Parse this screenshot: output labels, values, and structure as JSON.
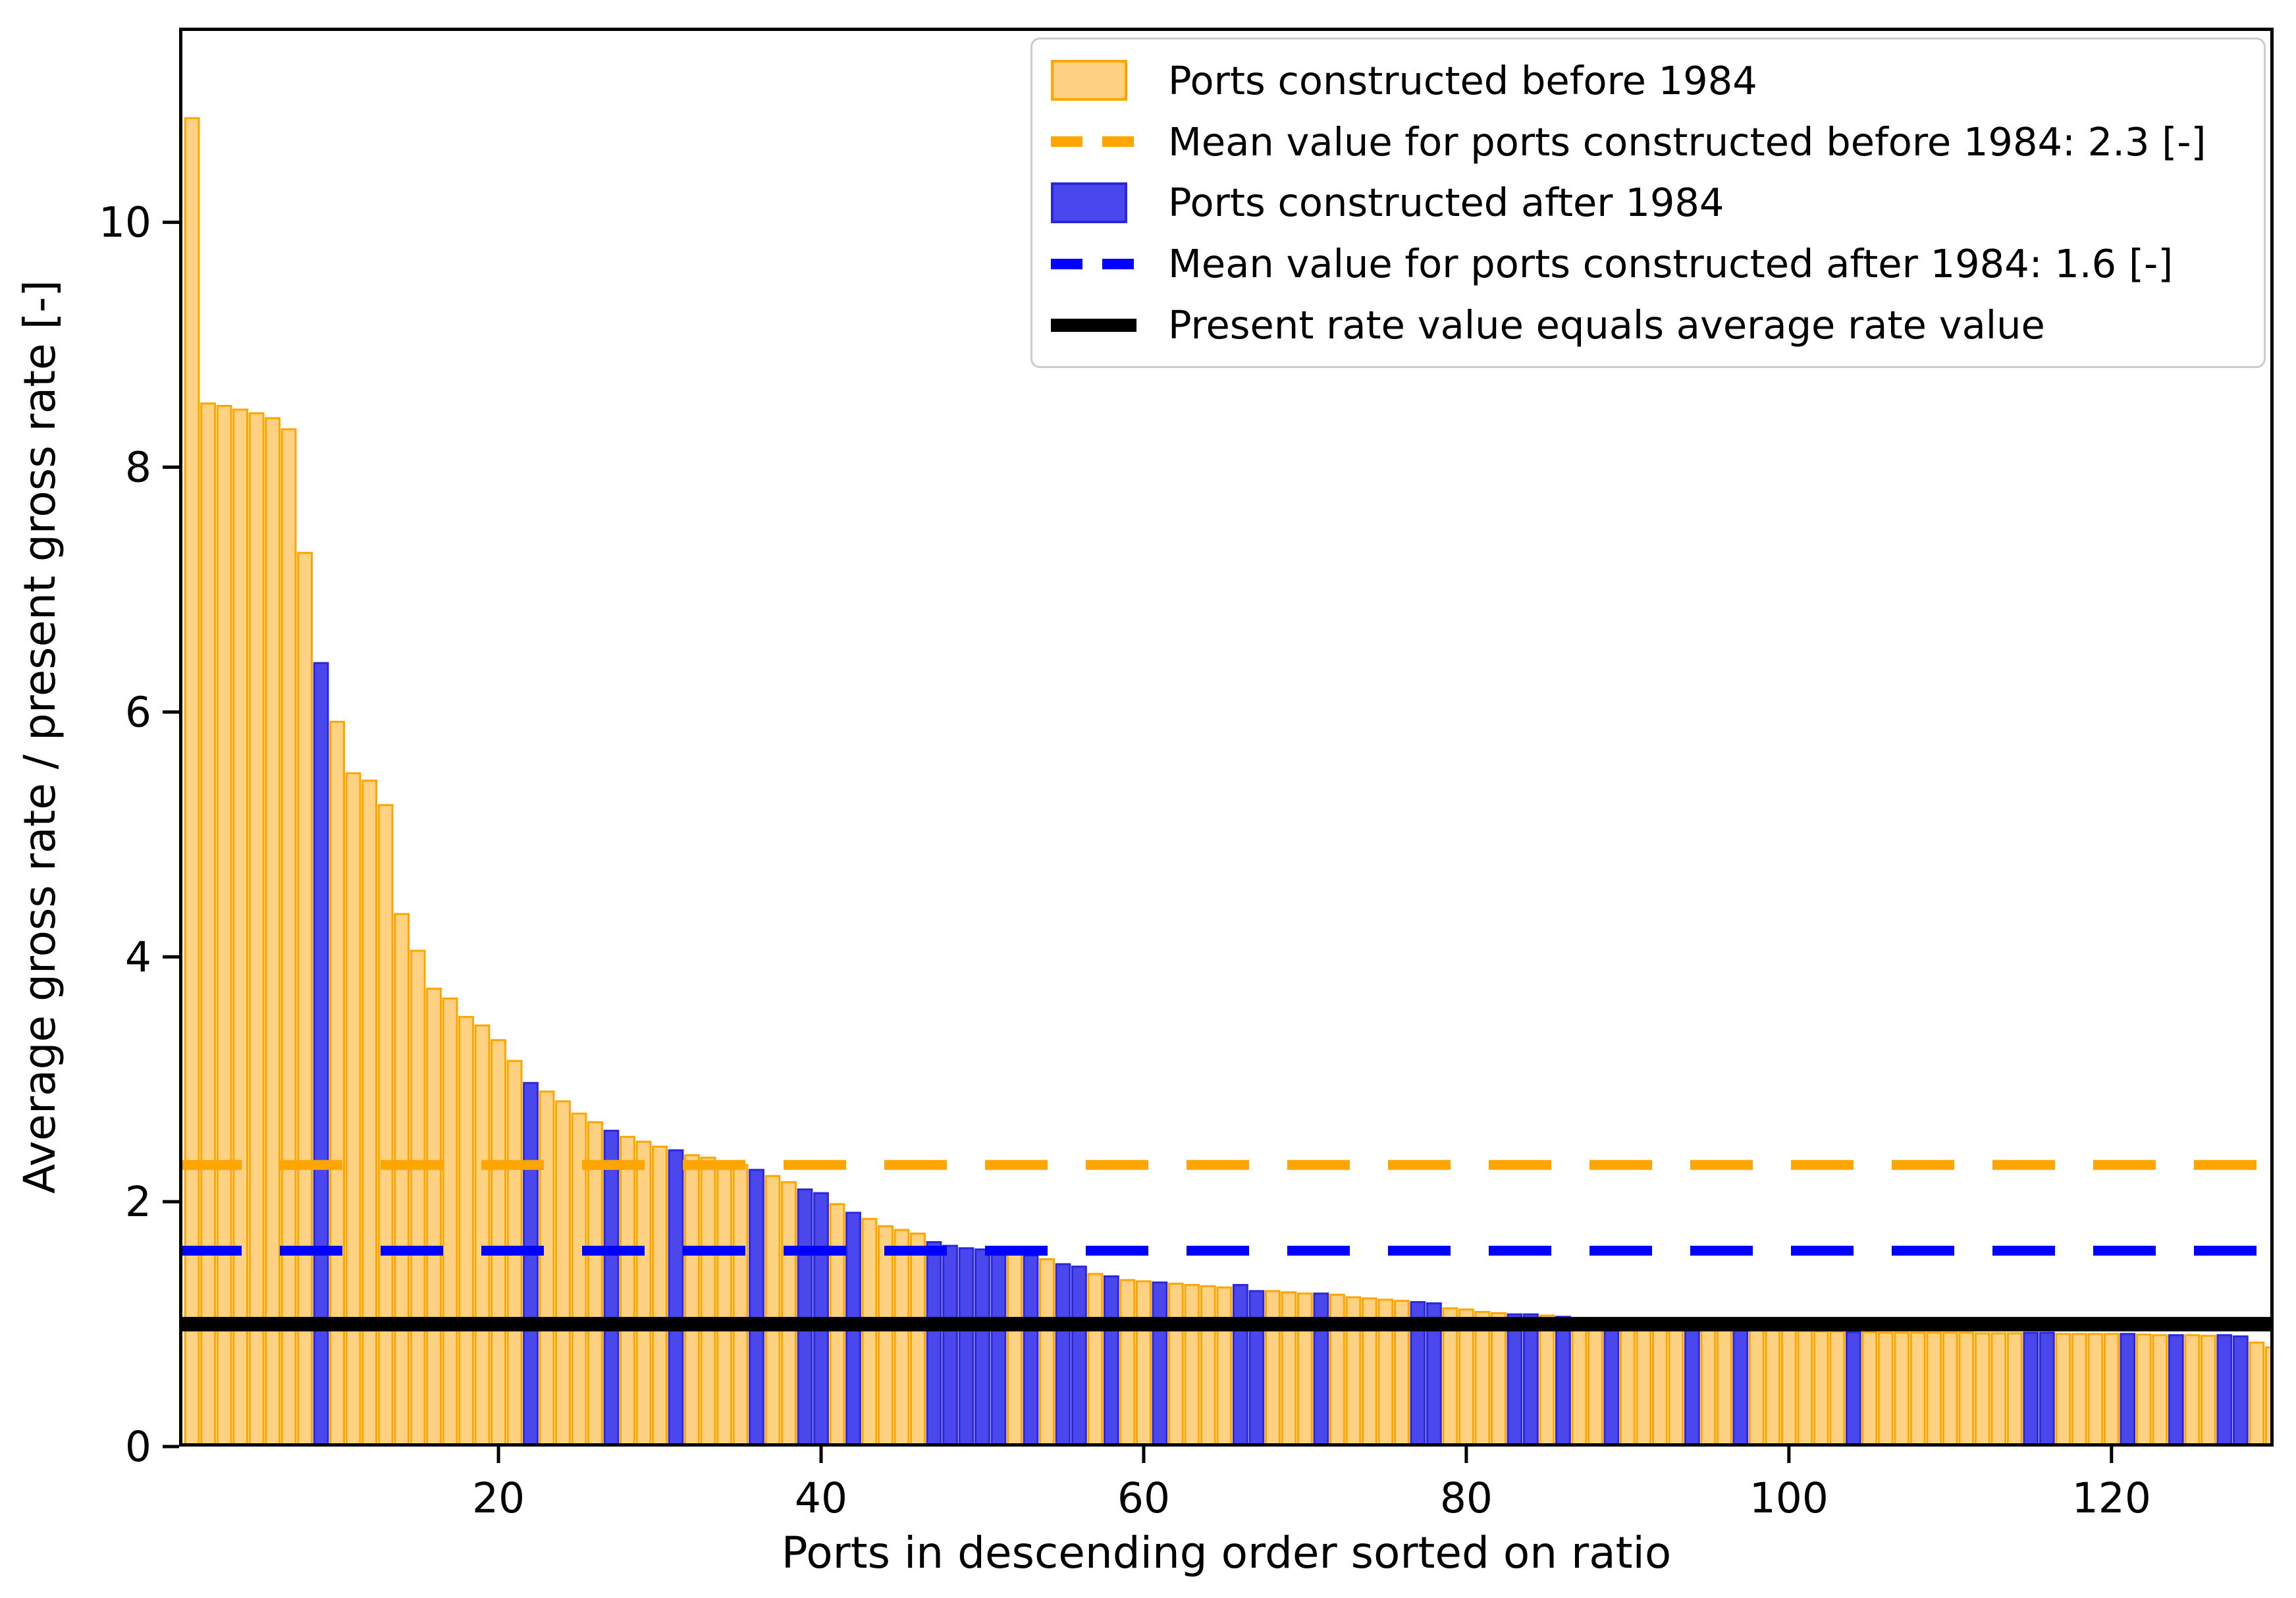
{
  "figure": {
    "xlabel": "Ports in descending order sorted on ratio",
    "ylabel": "Average gross rate / present gross rate [-]"
  },
  "legend": {
    "items": [
      {
        "label": "Ports constructed before 1984",
        "swatch": "patch-orange"
      },
      {
        "label": "Mean value for ports constructed before 1984: 2.3 [-]",
        "swatch": "line-orange-dashed"
      },
      {
        "label": "Ports constructed after 1984",
        "swatch": "patch-blue"
      },
      {
        "label": "Mean value for ports constructed after 1984: 1.6 [-]",
        "swatch": "line-blue-dashed"
      },
      {
        "label": "Present rate value equals average rate value",
        "swatch": "line-black-solid"
      }
    ]
  },
  "colors": {
    "before_fill": "#FFD283",
    "before_edge": "#FFA500",
    "after_fill": "#4A47EC",
    "after_edge": "#2B28D9",
    "mean_before_line": "#FFA500",
    "mean_after_line": "#0000FF",
    "parity_line": "#000000",
    "legend_border": "#cccccc"
  },
  "chart_data": {
    "type": "bar",
    "title": "",
    "xlabel": "Ports in descending order sorted on ratio",
    "ylabel": "Average gross rate / present gross rate [-]",
    "xlim": [
      0.2,
      130.05
    ],
    "ylim": [
      0,
      11.59
    ],
    "x_ticks": [
      20,
      40,
      60,
      80,
      100,
      120
    ],
    "y_ticks": [
      0,
      2,
      4,
      6,
      8,
      10
    ],
    "grid": false,
    "legend_position": "upper right",
    "bar_width": 0.85,
    "x": "port rank 1..130",
    "values": [
      10.85,
      8.52,
      8.5,
      8.47,
      8.44,
      8.4,
      8.31,
      7.3,
      6.4,
      5.92,
      5.5,
      5.44,
      5.24,
      4.35,
      4.05,
      3.74,
      3.66,
      3.51,
      3.44,
      3.32,
      3.15,
      2.97,
      2.9,
      2.82,
      2.72,
      2.65,
      2.58,
      2.53,
      2.49,
      2.45,
      2.42,
      2.38,
      2.36,
      2.33,
      2.3,
      2.26,
      2.21,
      2.16,
      2.1,
      2.07,
      1.98,
      1.91,
      1.86,
      1.8,
      1.77,
      1.74,
      1.67,
      1.64,
      1.62,
      1.61,
      1.6,
      1.58,
      1.56,
      1.53,
      1.49,
      1.47,
      1.41,
      1.39,
      1.36,
      1.35,
      1.34,
      1.33,
      1.32,
      1.31,
      1.3,
      1.32,
      1.27,
      1.27,
      1.26,
      1.25,
      1.25,
      1.24,
      1.22,
      1.21,
      1.2,
      1.19,
      1.18,
      1.17,
      1.13,
      1.12,
      1.1,
      1.09,
      1.08,
      1.08,
      1.07,
      1.06,
      1.05,
      1.04,
      1.02,
      1.0,
      0.99,
      0.985,
      0.98,
      0.975,
      0.97,
      0.965,
      0.96,
      0.955,
      0.95,
      0.95,
      0.945,
      0.94,
      0.94,
      0.935,
      0.935,
      0.93,
      0.93,
      0.93,
      0.93,
      0.93,
      0.93,
      0.925,
      0.925,
      0.925,
      0.93,
      0.93,
      0.92,
      0.92,
      0.92,
      0.92,
      0.92,
      0.915,
      0.91,
      0.91,
      0.91,
      0.905,
      0.91,
      0.9,
      0.85,
      0.81
    ],
    "series": [
      {
        "name": "Ports constructed before 1984",
        "fill": "#FFD283",
        "edge": "#FFA500"
      },
      {
        "name": "Ports constructed after 1984",
        "fill": "#4A47EC",
        "edge": "#2B28D9",
        "indices_1based": [
          9,
          22,
          27,
          31,
          36,
          39,
          40,
          42,
          47,
          48,
          49,
          50,
          51,
          53,
          55,
          56,
          58,
          61,
          66,
          67,
          71,
          77,
          78,
          83,
          84,
          86,
          89,
          94,
          97,
          104,
          115,
          116,
          121,
          124,
          127,
          128
        ]
      }
    ],
    "reference_lines": [
      {
        "name": "Mean value for ports constructed before 1984",
        "value": 2.3,
        "color": "#FFA500",
        "style": "dashed",
        "width": 15
      },
      {
        "name": "Mean value for ports constructed after 1984",
        "value": 1.6,
        "color": "#0000FF",
        "style": "dashed",
        "width": 15
      },
      {
        "name": "Present rate value equals average rate value",
        "value": 1.0,
        "color": "#000000",
        "style": "solid",
        "width": 22
      }
    ]
  }
}
